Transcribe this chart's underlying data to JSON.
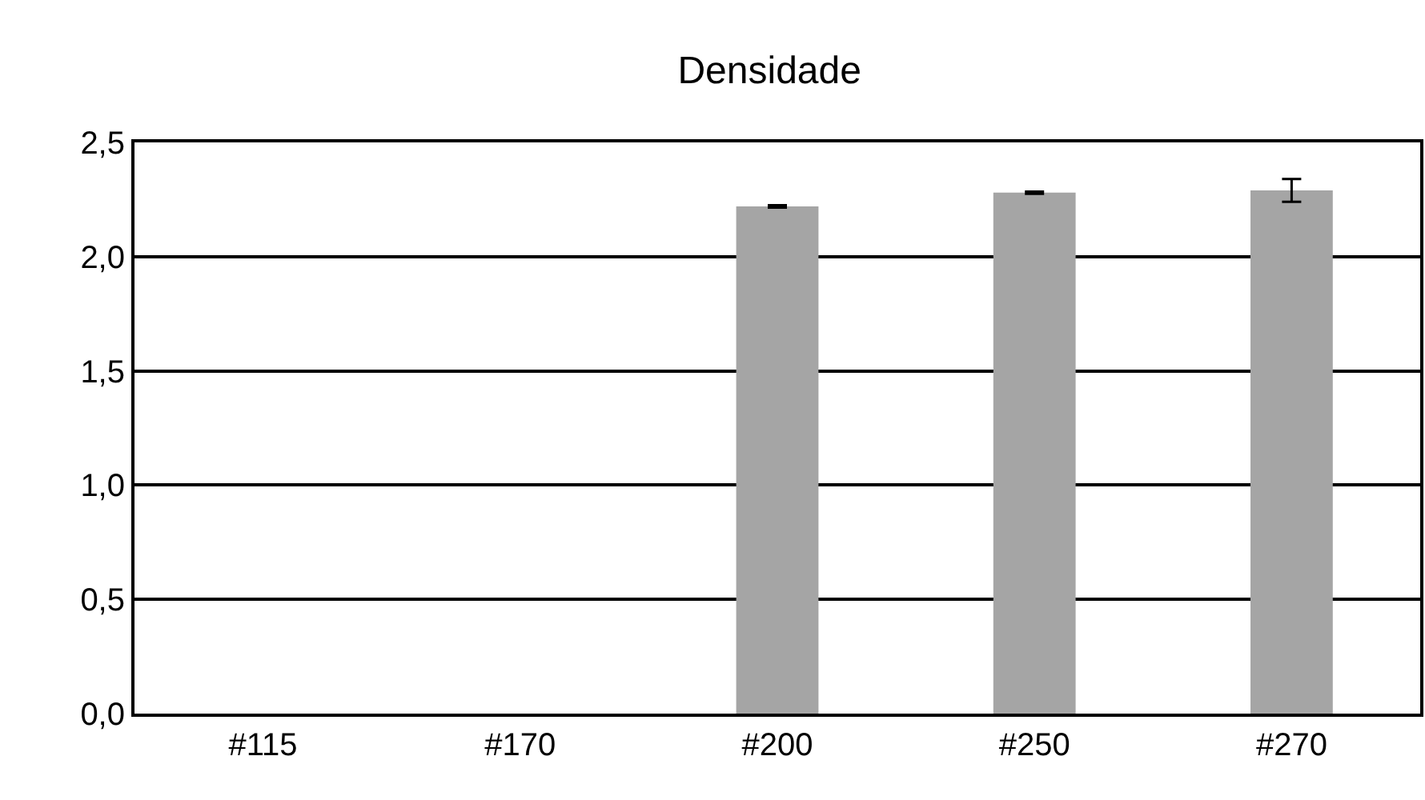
{
  "chart_data": {
    "type": "bar",
    "title": "Densidade",
    "categories": [
      "#115",
      "#170",
      "#200",
      "#250",
      "#270"
    ],
    "values": [
      null,
      null,
      2.22,
      2.28,
      2.29
    ],
    "errors": [
      null,
      null,
      0.005,
      0.005,
      0.05
    ],
    "color": "#a5a5a5",
    "ylim": [
      0,
      2.5
    ],
    "yticks": [
      {
        "value": 0,
        "label": "0,0"
      },
      {
        "value": 0.5,
        "label": "0,5"
      },
      {
        "value": 1,
        "label": "1,0"
      },
      {
        "value": 1.5,
        "label": "1,5"
      },
      {
        "value": 2,
        "label": "2,0"
      },
      {
        "value": 2.5,
        "label": "2,5"
      }
    ],
    "grid": true
  }
}
